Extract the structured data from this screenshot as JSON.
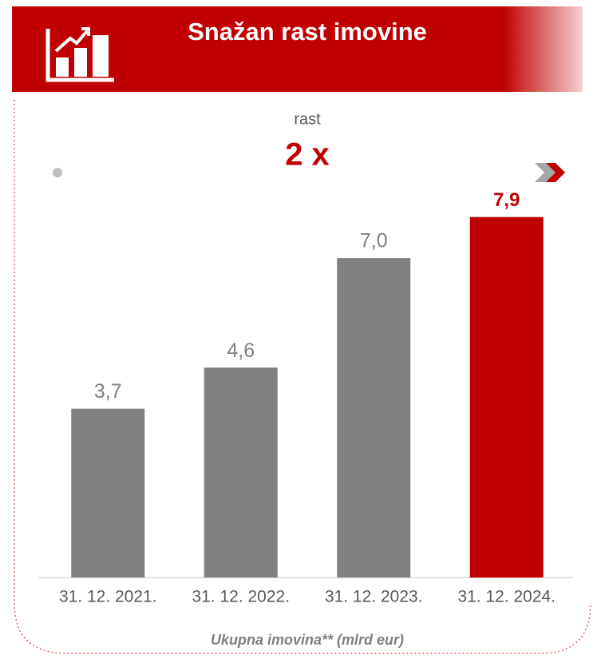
{
  "chart_data": {
    "type": "bar",
    "title": "Snažan rast imovine",
    "annotation_label": "rast",
    "annotation_value": "2 x",
    "categories": [
      "31. 12. 2021.",
      "31. 12. 2022.",
      "31. 12. 2023.",
      "31. 12. 2024."
    ],
    "values": [
      3.7,
      4.6,
      7.0,
      7.9
    ],
    "value_labels": [
      "3,7",
      "4,6",
      "7,0",
      "7,9"
    ],
    "colors": [
      "#808080",
      "#808080",
      "#808080",
      "#c00000"
    ],
    "highlight_index": 3,
    "xlabel": "Ukupna imovina** (mlrd eur)",
    "ylim": [
      0,
      8
    ],
    "grid": false
  }
}
